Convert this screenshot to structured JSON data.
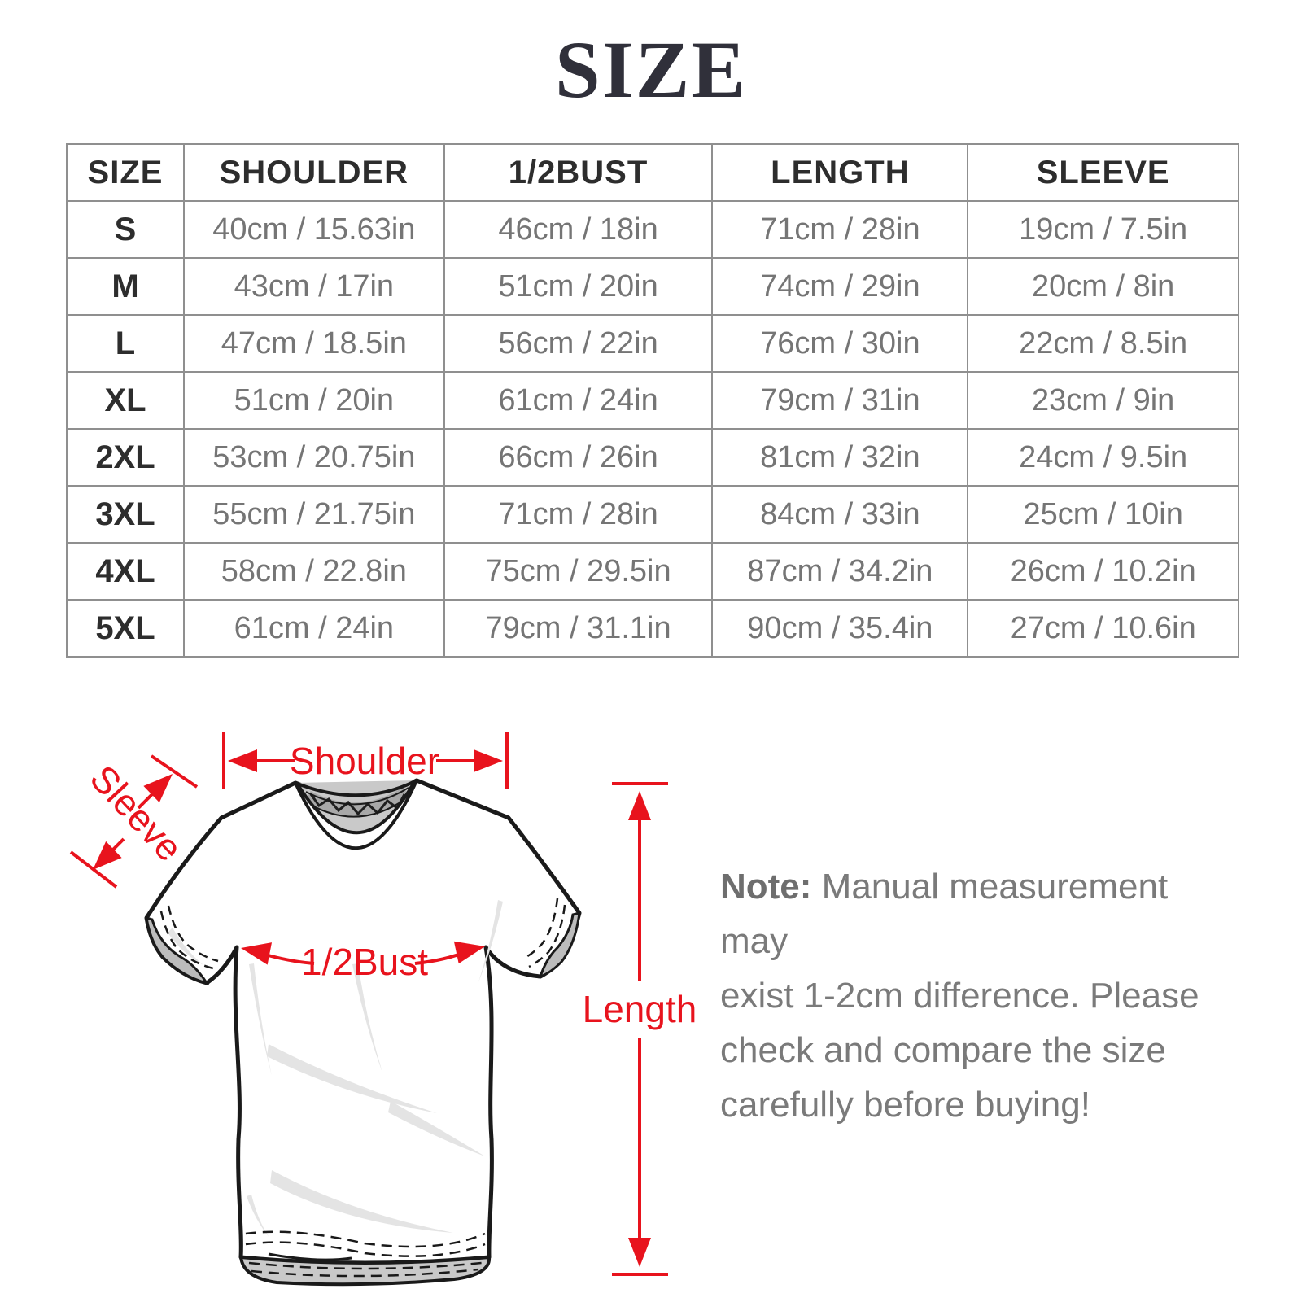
{
  "page_title": "SIZE",
  "table": {
    "columns": [
      "SIZE",
      "SHOULDER",
      "1/2BUST",
      "LENGTH",
      "SLEEVE"
    ],
    "rows": [
      [
        "S",
        "40cm / 15.63in",
        "46cm / 18in",
        "71cm / 28in",
        "19cm / 7.5in"
      ],
      [
        "M",
        "43cm / 17in",
        "51cm / 20in",
        "74cm / 29in",
        "20cm / 8in"
      ],
      [
        "L",
        "47cm / 18.5in",
        "56cm / 22in",
        "76cm / 30in",
        "22cm / 8.5in"
      ],
      [
        "XL",
        "51cm / 20in",
        "61cm / 24in",
        "79cm / 31in",
        "23cm / 9in"
      ],
      [
        "2XL",
        "53cm / 20.75in",
        "66cm / 26in",
        "81cm / 32in",
        "24cm / 9.5in"
      ],
      [
        "3XL",
        "55cm / 21.75in",
        "71cm / 28in",
        "84cm / 33in",
        "25cm / 10in"
      ],
      [
        "4XL",
        "58cm / 22.8in",
        "75cm / 29.5in",
        "87cm / 34.2in",
        "26cm / 10.2in"
      ],
      [
        "5XL",
        "61cm / 24in",
        "79cm / 31.1in",
        "90cm / 35.4in",
        "27cm / 10.6in"
      ]
    ]
  },
  "diagram": {
    "shoulder_label": "Shoulder",
    "sleeve_label": "Sleeve",
    "bust_label": "1/2Bust",
    "length_label": "Length",
    "accent_color": "#e8131d"
  },
  "note": {
    "prefix": "Note:",
    "line1": " Manual measurement may",
    "rest": "exist 1-2cm difference. Please\ncheck and compare the size\ncarefully before buying!"
  }
}
